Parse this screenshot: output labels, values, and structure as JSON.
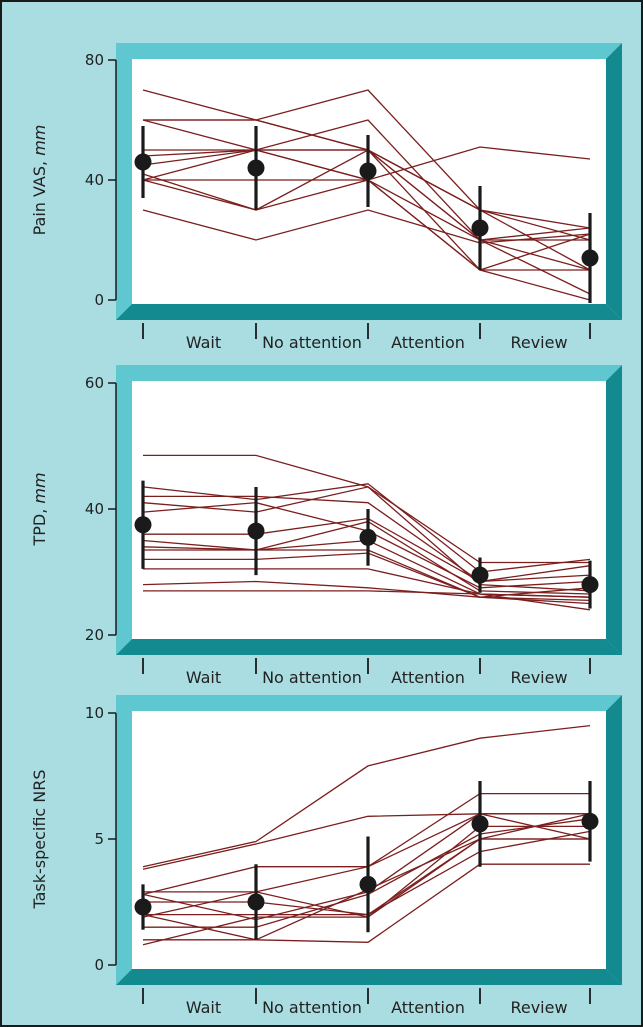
{
  "colors": {
    "background": "#a9dde2",
    "frame_light": "#5ec7d0",
    "frame_dark": "#138a8f",
    "individual_line": "#7b1e1e",
    "mean_marker": "#1a1a1a",
    "border": "#1a1a1a"
  },
  "chart_data": [
    {
      "type": "line",
      "ylabel_main": "Pain VAS, ",
      "ylabel_unit": "mm",
      "ylim": [
        0,
        80
      ],
      "yticks": [
        0,
        40,
        80
      ],
      "categories": [
        "Wait",
        "No attention",
        "Attention",
        "Review"
      ],
      "x_points": [
        0,
        1,
        2,
        3,
        4
      ],
      "individuals": [
        [
          70,
          60,
          50,
          20,
          20
        ],
        [
          60,
          60,
          70,
          30,
          10
        ],
        [
          60,
          60,
          50,
          20,
          24
        ],
        [
          60,
          50,
          50,
          30,
          20
        ],
        [
          50,
          50,
          60,
          20,
          2
        ],
        [
          48,
          50,
          50,
          30,
          24
        ],
        [
          45,
          50,
          40,
          10,
          22
        ],
        [
          40,
          40,
          40,
          51,
          47
        ],
        [
          40,
          30,
          40,
          10,
          10
        ],
        [
          42,
          30,
          50,
          10,
          0
        ],
        [
          40,
          50,
          40,
          20,
          10
        ],
        [
          30,
          20,
          30,
          19,
          22
        ]
      ],
      "means": [
        46,
        44,
        43,
        24,
        14
      ],
      "sd": [
        12,
        14,
        12,
        14,
        15
      ]
    },
    {
      "type": "line",
      "ylabel_main": "TPD, ",
      "ylabel_unit": "mm",
      "ylim": [
        20,
        60
      ],
      "yticks": [
        20,
        40,
        60
      ],
      "categories": [
        "Wait",
        "No attention",
        "Attention",
        "Review"
      ],
      "x_points": [
        0,
        1,
        2,
        3,
        4
      ],
      "individuals": [
        [
          48.5,
          48.5,
          43.5,
          31.5,
          31.5
        ],
        [
          43.5,
          41.5,
          44,
          30,
          32
        ],
        [
          42,
          42,
          41,
          28.5,
          31
        ],
        [
          41,
          39.5,
          43.5,
          28,
          27
        ],
        [
          39.5,
          41,
          36.5,
          27.5,
          28.5
        ],
        [
          36,
          36,
          38.5,
          28.5,
          29.5
        ],
        [
          35,
          33.5,
          38,
          27,
          26.5
        ],
        [
          34,
          33.5,
          35,
          26.5,
          26
        ],
        [
          33.5,
          33.5,
          33.5,
          26,
          27.5
        ],
        [
          32,
          32,
          33,
          26,
          25.5
        ],
        [
          30.5,
          30.5,
          30.5,
          26.5,
          26
        ],
        [
          28,
          28.5,
          27.5,
          26,
          25
        ],
        [
          27,
          27,
          27,
          26.5,
          24
        ]
      ],
      "means": [
        37.5,
        36.5,
        35.5,
        29.5,
        28
      ],
      "sd": [
        7,
        7,
        4.5,
        2.8,
        3.8
      ]
    },
    {
      "type": "line",
      "ylabel_main": "Task-specific NRS",
      "ylabel_unit": "",
      "ylim": [
        0,
        10
      ],
      "yticks": [
        0,
        5,
        10
      ],
      "categories": [
        "Wait",
        "No attention",
        "Attention",
        "Review"
      ],
      "x_points": [
        0,
        1,
        2,
        3,
        4
      ],
      "individuals": [
        [
          3.9,
          4.9,
          7.9,
          9,
          9.5
        ],
        [
          3.8,
          4.8,
          5.9,
          6,
          6
        ],
        [
          2.9,
          2.9,
          3.9,
          6.8,
          6.8
        ],
        [
          2.8,
          3.9,
          3.9,
          6,
          5
        ],
        [
          2.8,
          1.8,
          2.9,
          6,
          6
        ],
        [
          2,
          2,
          2,
          5,
          5
        ],
        [
          2,
          1,
          3,
          5,
          6
        ],
        [
          1.9,
          2.9,
          1.9,
          5,
          5
        ],
        [
          1,
          1,
          0.9,
          4,
          4
        ],
        [
          0.8,
          1.9,
          1.9,
          5.5,
          5.5
        ],
        [
          2.5,
          2.5,
          2,
          4.5,
          5.3
        ],
        [
          1.5,
          1.5,
          2.8,
          5.2,
          5.8
        ]
      ],
      "means": [
        2.3,
        2.5,
        3.2,
        5.6,
        5.7
      ],
      "sd": [
        0.9,
        1.5,
        1.9,
        1.7,
        1.6
      ]
    }
  ]
}
